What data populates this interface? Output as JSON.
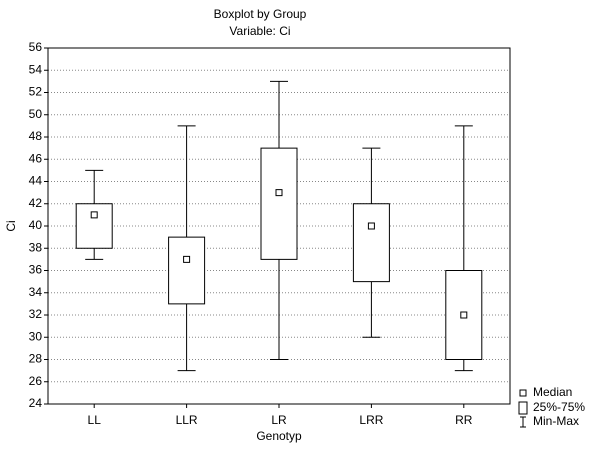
{
  "chart_data": {
    "type": "boxplot",
    "title": "Boxplot by Group",
    "subtitle": "Variable: Ci",
    "x_label": "Genotyp",
    "y_label": "Ci",
    "categories": [
      "LL",
      "LLR",
      "LR",
      "LRR",
      "RR"
    ],
    "min": [
      37,
      27,
      28,
      30,
      27
    ],
    "q1": [
      38,
      33,
      37,
      35,
      28
    ],
    "median": [
      41,
      37,
      43,
      40,
      32
    ],
    "q3": [
      42,
      39,
      47,
      42,
      36
    ],
    "max": [
      45,
      49,
      53,
      47,
      49
    ],
    "legend": [
      "Median",
      "25%-75%",
      "Min-Max"
    ],
    "color": "#ffffff",
    "line_color": "#000000",
    "ylim": [
      24,
      56
    ],
    "yticks": [
      24,
      26,
      28,
      30,
      32,
      34,
      36,
      38,
      40,
      42,
      44,
      46,
      48,
      50,
      52,
      54,
      56
    ],
    "grid": true
  }
}
